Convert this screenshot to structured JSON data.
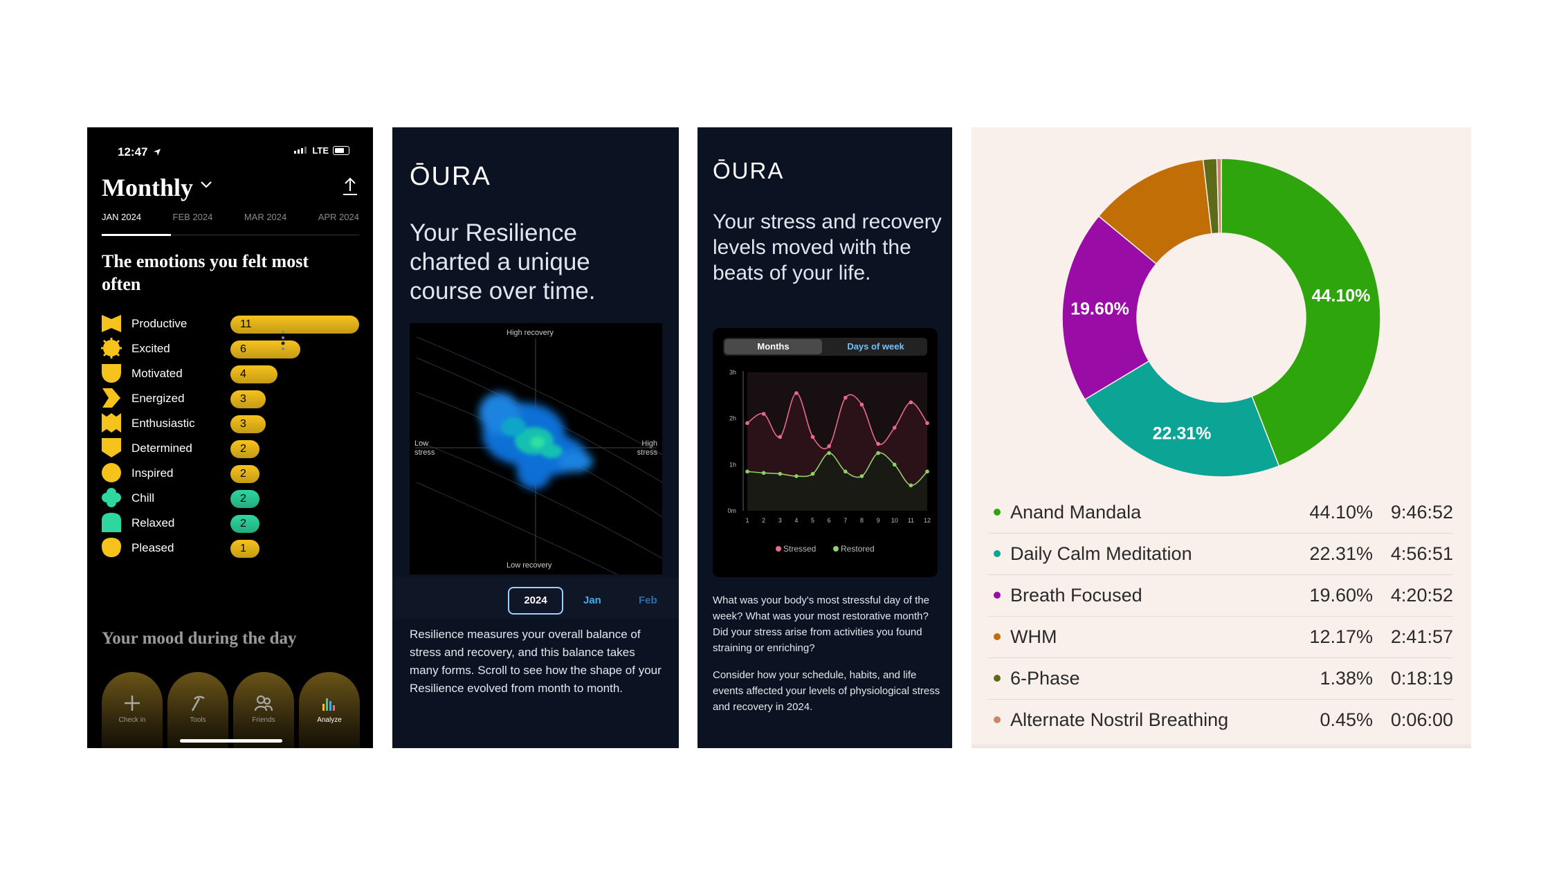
{
  "panel1": {
    "status": {
      "time": "12:47",
      "network": "LTE"
    },
    "title": "Monthly",
    "month_tabs": [
      {
        "label": "JAN 2024",
        "active": true
      },
      {
        "label": "FEB 2024",
        "active": false
      },
      {
        "label": "MAR 2024",
        "active": false
      },
      {
        "label": "APR 2024",
        "active": false
      }
    ],
    "section_title": "The emotions you felt most often",
    "emotions": [
      {
        "label": "Productive",
        "count": "11",
        "value": 11,
        "color": "#f6c21c"
      },
      {
        "label": "Excited",
        "count": "6",
        "value": 6,
        "color": "#f6c21c"
      },
      {
        "label": "Motivated",
        "count": "4",
        "value": 4,
        "color": "#f6c21c"
      },
      {
        "label": "Energized",
        "count": "3",
        "value": 3,
        "color": "#f6c21c"
      },
      {
        "label": "Enthusiastic",
        "count": "3",
        "value": 3,
        "color": "#f6c21c"
      },
      {
        "label": "Determined",
        "count": "2",
        "value": 2,
        "color": "#f6c21c"
      },
      {
        "label": "Inspired",
        "count": "2",
        "value": 2,
        "color": "#f6c21c"
      },
      {
        "label": "Chill",
        "count": "2",
        "value": 2,
        "color": "#2ed6a0"
      },
      {
        "label": "Relaxed",
        "count": "2",
        "value": 2,
        "color": "#2ed6a0"
      },
      {
        "label": "Pleased",
        "count": "1",
        "value": 1,
        "color": "#f6c21c"
      }
    ],
    "mood_title": "Your mood during the day",
    "nav": [
      {
        "label": "Check in",
        "icon": "plus-icon"
      },
      {
        "label": "Tools",
        "icon": "tools-icon"
      },
      {
        "label": "Friends",
        "icon": "friends-icon"
      },
      {
        "label": "Analyze",
        "icon": "bar-chart-icon"
      }
    ]
  },
  "panel2": {
    "logo": "ŌURA",
    "headline": "Your Resilience charted a unique course over time.",
    "chart_labels": {
      "top": "High recovery",
      "bottom": "Low recovery",
      "left": "Low\nstress",
      "right": "High\nstress"
    },
    "year_buttons": {
      "selected": "2024",
      "next": "Jan",
      "after": "Feb"
    },
    "description": "Resilience measures your overall balance of stress and recovery, and this balance takes many forms. Scroll to see how the shape of your Resilience evolved from month to month."
  },
  "panel3": {
    "logo": "ŌURA",
    "headline": "Your stress and recovery levels moved with the beats of your life.",
    "segments": {
      "a": "Months",
      "b": "Days of week"
    },
    "description_1": "What was your body's most stressful day of the week? What was your most restorative month? Did your stress arise from activities you found straining or enriching?",
    "description_2": "Consider how your schedule, habits, and life events affected your levels of physiological stress and recovery in 2024.",
    "chart_data": {
      "type": "line",
      "x": [
        1,
        2,
        3,
        4,
        5,
        6,
        7,
        8,
        9,
        10,
        11,
        12
      ],
      "yticks": [
        "0m",
        "1h",
        "2h",
        "3h"
      ],
      "ylim": [
        0,
        3
      ],
      "series": [
        {
          "name": "Stressed",
          "color": "#e86b8a",
          "values": [
            1.9,
            2.1,
            1.6,
            2.55,
            1.6,
            1.4,
            2.45,
            2.3,
            1.45,
            1.8,
            2.35,
            1.9
          ]
        },
        {
          "name": "Restored",
          "color": "#8fd068",
          "values": [
            0.85,
            0.82,
            0.8,
            0.75,
            0.8,
            1.25,
            0.85,
            0.75,
            1.25,
            1.0,
            0.55,
            0.85
          ]
        }
      ]
    }
  },
  "panel4": {
    "chart_data": {
      "type": "pie",
      "labels": [
        "Anand Mandala",
        "Daily Calm Meditation",
        "Breath Focused",
        "WHM",
        "6-Phase",
        "Alternate Nostril Breathing"
      ],
      "values": [
        44.1,
        22.31,
        19.6,
        12.17,
        1.38,
        0.45
      ],
      "colors": [
        "#2ea50c",
        "#0ca595",
        "#990ca5",
        "#c06e05",
        "#5d6b19",
        "#c98469"
      ],
      "slice_labels": [
        "44.10%",
        "22.31%",
        "19.60%",
        "",
        "",
        ""
      ]
    },
    "legend": [
      {
        "name": "Anand Mandala",
        "pct": "44.10%",
        "time": "9:46:52",
        "color": "#2ea50c"
      },
      {
        "name": "Daily Calm Meditation",
        "pct": "22.31%",
        "time": "4:56:51",
        "color": "#0ca595"
      },
      {
        "name": "Breath Focused",
        "pct": "19.60%",
        "time": "4:20:52",
        "color": "#990ca5"
      },
      {
        "name": "WHM",
        "pct": "12.17%",
        "time": "2:41:57",
        "color": "#c06e05"
      },
      {
        "name": "6-Phase",
        "pct": "1.38%",
        "time": "0:18:19",
        "color": "#5d6b19"
      },
      {
        "name": "Alternate Nostril Breathing",
        "pct": "0.45%",
        "time": "0:06:00",
        "color": "#c98469"
      }
    ]
  }
}
